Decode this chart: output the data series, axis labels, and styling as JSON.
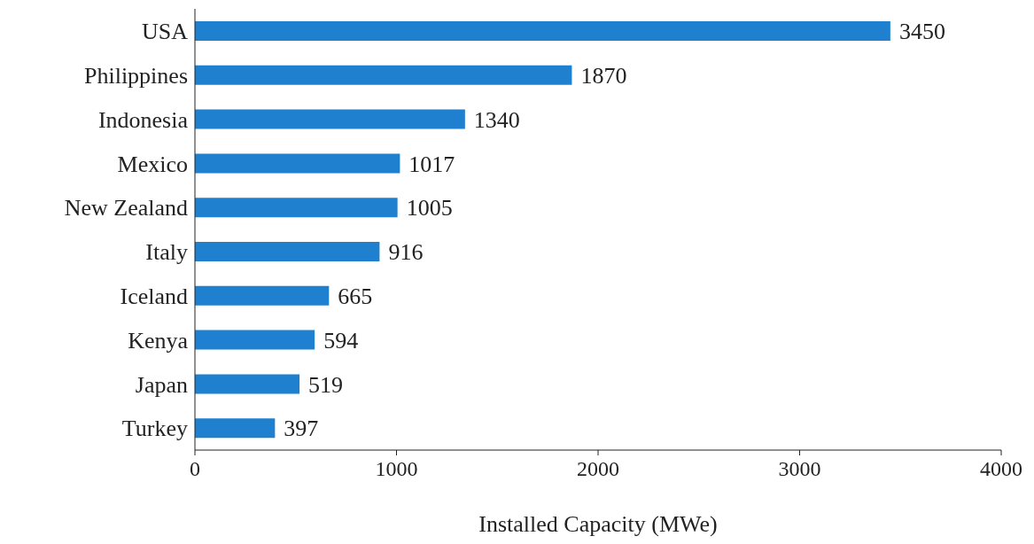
{
  "chart_data": {
    "type": "bar",
    "orientation": "horizontal",
    "xlabel": "Installed Capacity (MWe)",
    "categories": [
      "USA",
      "Philippines",
      "Indonesia",
      "Mexico",
      "New Zealand",
      "Italy",
      "Iceland",
      "Kenya",
      "Japan",
      "Turkey"
    ],
    "values": [
      3450,
      1870,
      1340,
      1017,
      1005,
      916,
      665,
      594,
      519,
      397
    ],
    "color": "#1f80d0",
    "xlim": [
      0,
      4000
    ],
    "xticks": [
      0,
      1000,
      2000,
      3000,
      4000
    ],
    "data_labels": true,
    "grid": false,
    "legend": false
  }
}
